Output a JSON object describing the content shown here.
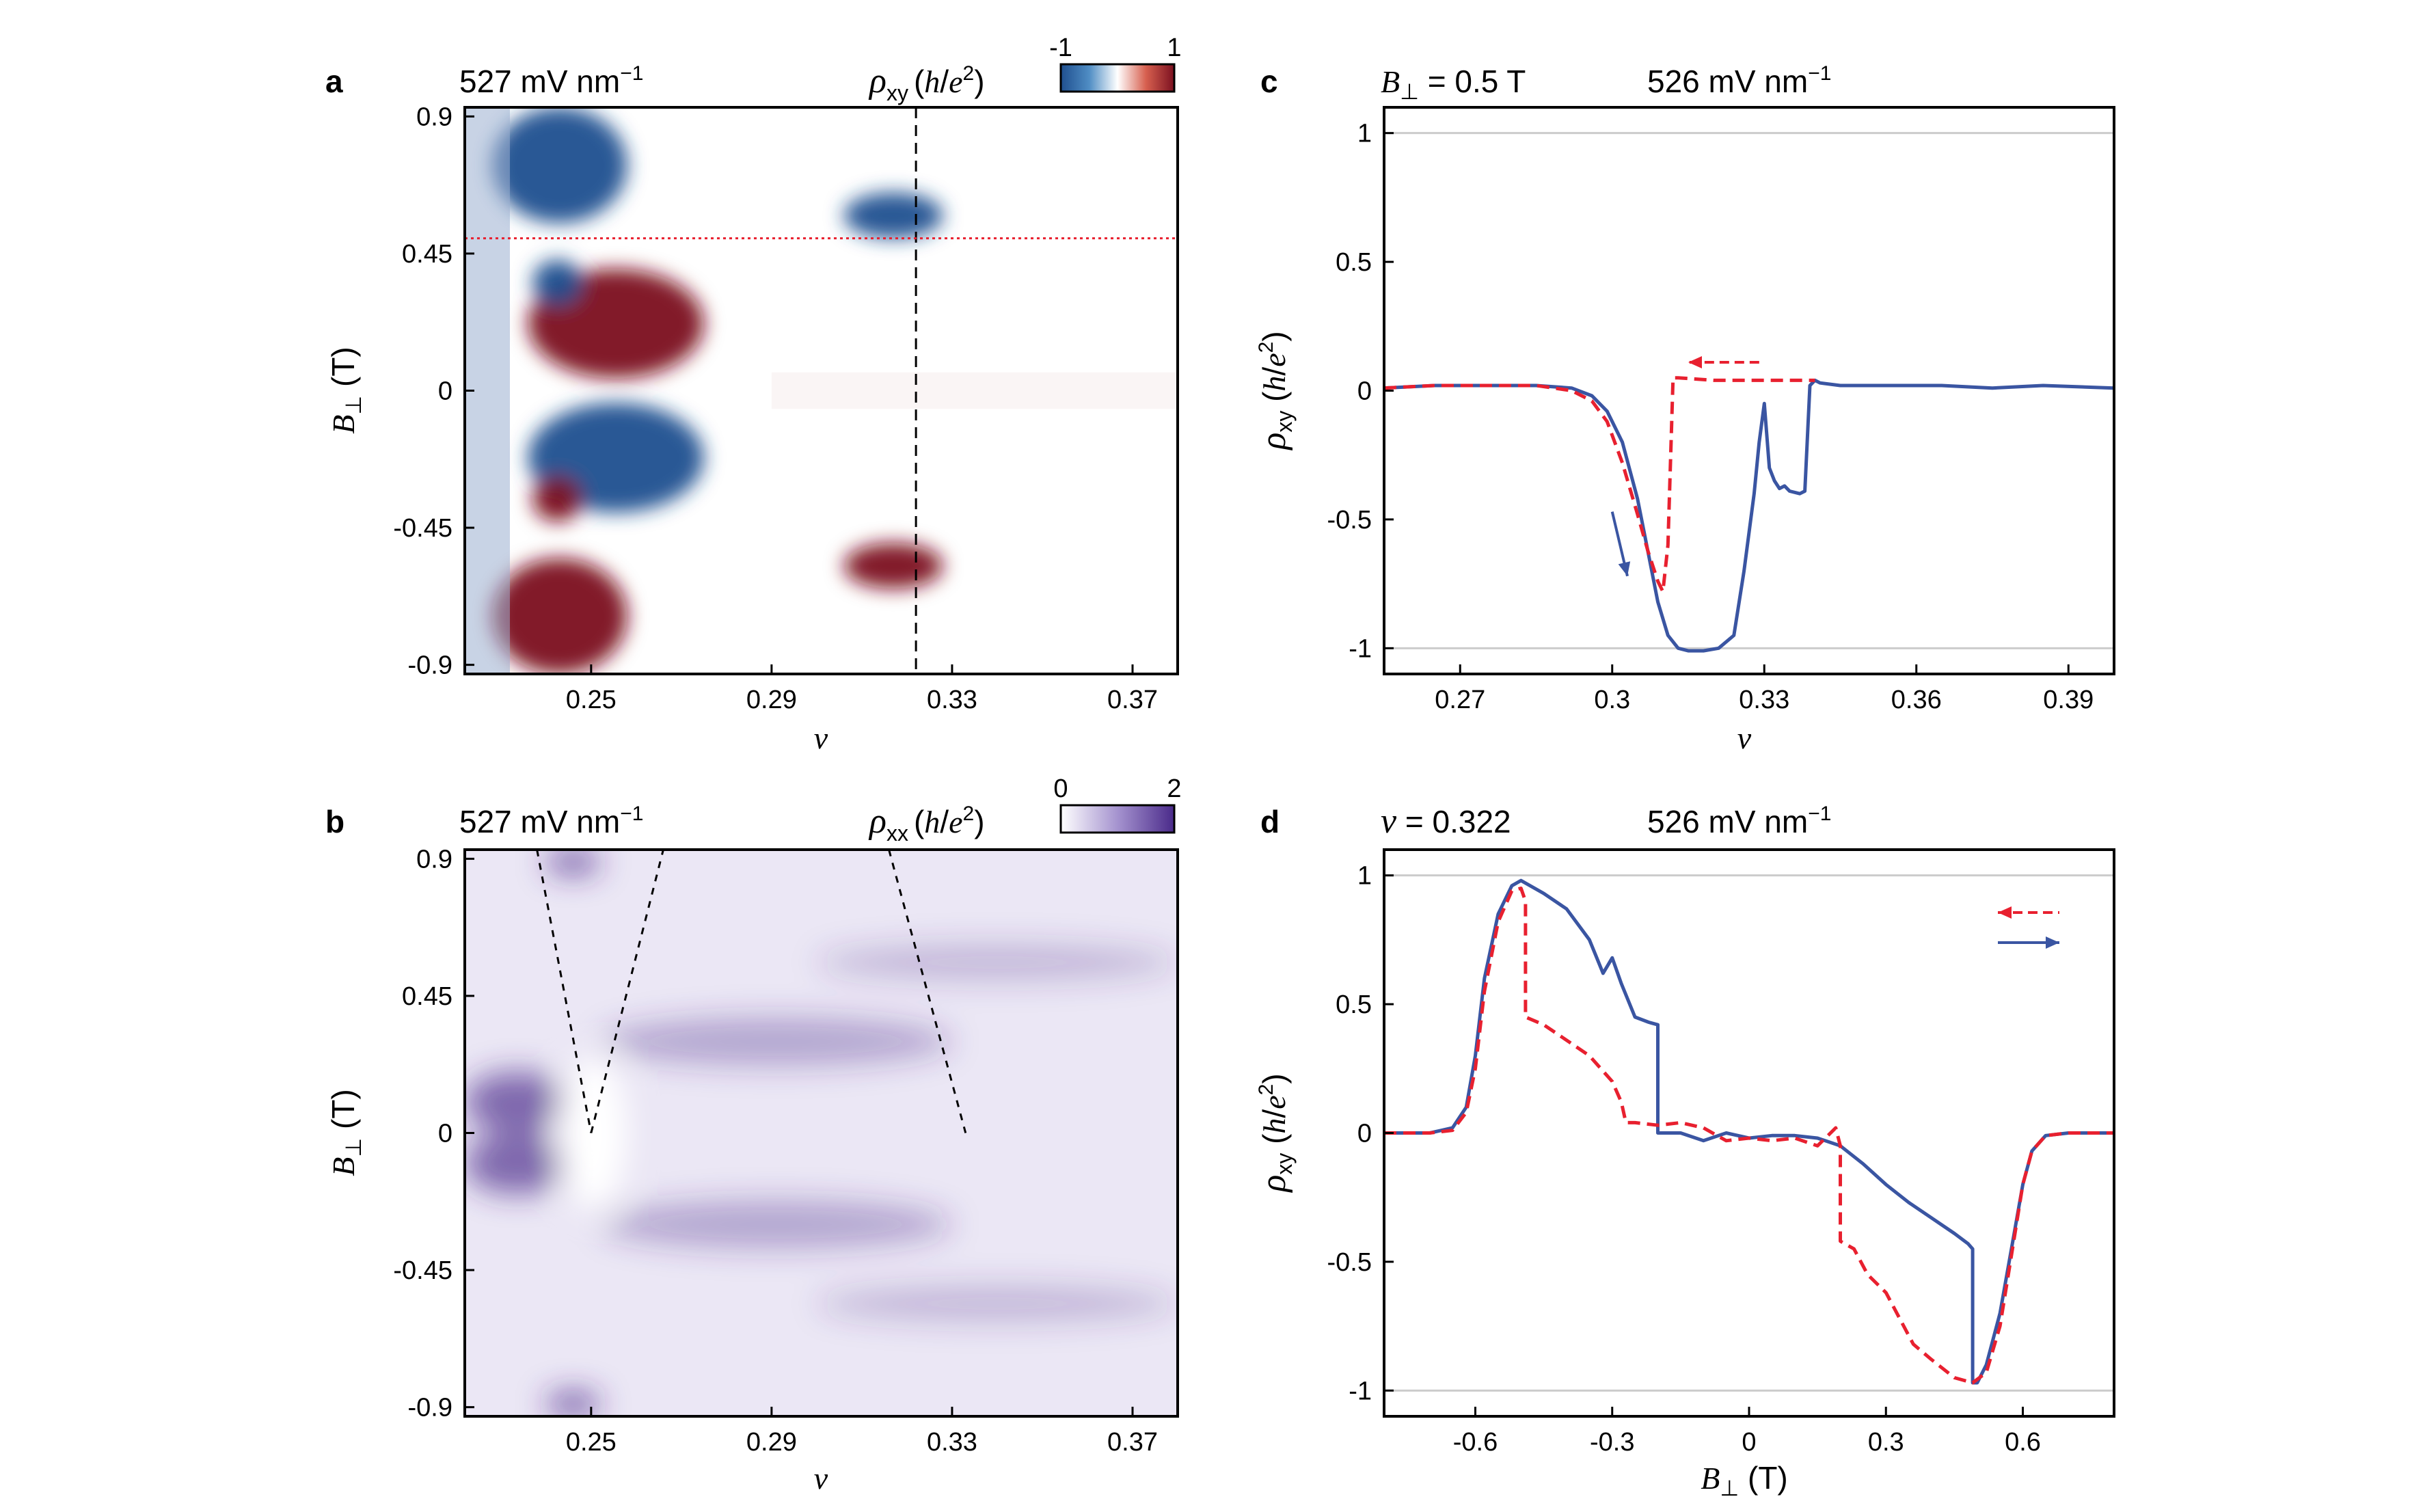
{
  "colors": {
    "red": "#e8202f",
    "blue": "#3a55a2",
    "neg": "#1f4f8f",
    "pos": "#7b1020",
    "purple": "#4a2a8a"
  },
  "panels": {
    "a": {
      "letter": "a",
      "field": "527 mV nm",
      "field_exp": "−1",
      "var_sym": "ρ",
      "var_sub": "xy",
      "var_unit_open": "(",
      "var_unit_h": "h",
      "var_unit_slash": "/",
      "var_unit_e": "e",
      "var_unit_exp": "2",
      "var_unit_close": ")",
      "cbar_min": "-1",
      "cbar_max": "1"
    },
    "b": {
      "letter": "b",
      "field": "527 mV nm",
      "field_exp": "−1",
      "var_sym": "ρ",
      "var_sub": "xx",
      "var_unit_open": "(",
      "var_unit_h": "h",
      "var_unit_slash": "/",
      "var_unit_e": "e",
      "var_unit_exp": "2",
      "var_unit_close": ")",
      "cbar_min": "0",
      "cbar_max": "2"
    },
    "c": {
      "letter": "c",
      "cond_sym": "B",
      "cond_sub": "⊥",
      "cond_val": " = 0.5 T",
      "field": "526 mV nm",
      "field_exp": "−1"
    },
    "d": {
      "letter": "d",
      "cond_sym": "ν",
      "cond_val": " = 0.322",
      "field": "526 mV nm",
      "field_exp": "−1"
    }
  },
  "chart_data": [
    {
      "id": "a",
      "type": "heatmap",
      "quantity": "ρxy",
      "xlabel": "ν",
      "ylabel_sym": "B",
      "ylabel_sub": "⊥",
      "ylabel_unit": " (T)",
      "xlim": [
        0.222,
        0.38
      ],
      "ylim": [
        -0.93,
        0.93
      ],
      "xticks": [
        "0.25",
        "0.29",
        "0.33",
        "0.37"
      ],
      "xtick_values": [
        0.25,
        0.29,
        0.33,
        0.37
      ],
      "yticks": [
        "0.9",
        "0.45",
        "0",
        "-0.45",
        "-0.9"
      ],
      "ytick_values": [
        0.9,
        0.45,
        0,
        -0.45,
        -0.9
      ],
      "colorbar": {
        "min": -1,
        "max": 1,
        "map": "blue-white-red"
      },
      "markers": {
        "vline_nu": 0.322,
        "hline_B": 0.5
      },
      "regions": [
        {
          "sign": -1,
          "nu": [
            0.228,
            0.258
          ],
          "B": [
            0.55,
            0.93
          ]
        },
        {
          "sign": 1,
          "nu": [
            0.236,
            0.275
          ],
          "B": [
            0.04,
            0.4
          ]
        },
        {
          "sign": -1,
          "nu": [
            0.237,
            0.248
          ],
          "B": [
            0.28,
            0.43
          ]
        },
        {
          "sign": -1,
          "nu": [
            0.236,
            0.275
          ],
          "B": [
            -0.4,
            -0.04
          ]
        },
        {
          "sign": 1,
          "nu": [
            0.237,
            0.248
          ],
          "B": [
            -0.43,
            -0.28
          ]
        },
        {
          "sign": 1,
          "nu": [
            0.228,
            0.258
          ],
          "B": [
            -0.93,
            -0.55
          ]
        },
        {
          "sign": -1,
          "nu": [
            0.306,
            0.328
          ],
          "B": [
            0.5,
            0.65
          ]
        },
        {
          "sign": 1,
          "nu": [
            0.306,
            0.328
          ],
          "B": [
            -0.65,
            -0.5
          ]
        }
      ]
    },
    {
      "id": "b",
      "type": "heatmap",
      "quantity": "ρxx",
      "xlabel": "ν",
      "ylabel_sym": "B",
      "ylabel_sub": "⊥",
      "ylabel_unit": " (T)",
      "xlim": [
        0.222,
        0.38
      ],
      "ylim": [
        -0.93,
        0.93
      ],
      "xticks": [
        "0.25",
        "0.29",
        "0.33",
        "0.37"
      ],
      "xtick_values": [
        0.25,
        0.29,
        0.33,
        0.37
      ],
      "yticks": [
        "0.9",
        "0.45",
        "0",
        "-0.45",
        "-0.9"
      ],
      "ytick_values": [
        0.9,
        0.45,
        0,
        -0.45,
        -0.9
      ],
      "colorbar": {
        "min": 0,
        "max": 2,
        "map": "white-purple"
      },
      "guide_lines": [
        {
          "nu": [
            0.238,
            0.25
          ],
          "B": [
            0.93,
            0.0
          ]
        },
        {
          "nu": [
            0.25,
            0.266
          ],
          "B": [
            0.0,
            0.93
          ]
        },
        {
          "nu": [
            0.316,
            0.333
          ],
          "B": [
            0.93,
            0.0
          ]
        }
      ],
      "regions": [
        {
          "nu": [
            0.222,
            0.245
          ],
          "B": [
            0.0,
            0.2
          ],
          "level": 1.6
        },
        {
          "nu": [
            0.222,
            0.245
          ],
          "B": [
            -0.2,
            0.0
          ],
          "level": 1.6
        },
        {
          "nu": [
            0.24,
            0.252
          ],
          "B": [
            0.85,
            0.93
          ],
          "level": 1.8
        },
        {
          "nu": [
            0.24,
            0.252
          ],
          "B": [
            -0.93,
            -0.85
          ],
          "level": 1.8
        },
        {
          "nu": [
            0.252,
            0.33
          ],
          "B": [
            0.22,
            0.38
          ],
          "level": 0.8
        },
        {
          "nu": [
            0.252,
            0.33
          ],
          "B": [
            -0.38,
            -0.22
          ],
          "level": 0.8
        },
        {
          "nu": [
            0.3,
            0.38
          ],
          "B": [
            0.5,
            0.62
          ],
          "level": 0.6
        },
        {
          "nu": [
            0.3,
            0.38
          ],
          "B": [
            -0.62,
            -0.5
          ],
          "level": 0.6
        }
      ]
    },
    {
      "id": "c",
      "type": "line",
      "xlabel": "ν",
      "ylabel_sym": "ρ",
      "ylabel_sub": "xy",
      "ylabel_unit_open": " (",
      "ylabel_unit_h": "h",
      "ylabel_unit_slash": "/",
      "ylabel_unit_e": "e",
      "ylabel_unit_exp": "2",
      "ylabel_unit_close": ")",
      "xlim": [
        0.255,
        0.399
      ],
      "ylim": [
        -1.1,
        1.1
      ],
      "xticks": [
        "0.27",
        "0.3",
        "0.33",
        "0.36",
        "0.39"
      ],
      "xtick_values": [
        0.27,
        0.3,
        0.33,
        0.36,
        0.39
      ],
      "yticks": [
        "1",
        "0.5",
        "0",
        "-0.5",
        "-1"
      ],
      "ytick_values": [
        1,
        0.5,
        0,
        -0.5,
        -1
      ],
      "hlines": [
        1,
        -1
      ],
      "series": [
        {
          "color": "#3a55a2",
          "dash": false,
          "x": [
            0.255,
            0.265,
            0.275,
            0.285,
            0.292,
            0.296,
            0.299,
            0.302,
            0.305,
            0.307,
            0.309,
            0.311,
            0.313,
            0.315,
            0.318,
            0.321,
            0.324,
            0.326,
            0.328,
            0.329,
            0.33,
            0.331,
            0.332,
            0.333,
            0.334,
            0.335,
            0.337,
            0.338,
            0.339,
            0.34,
            0.341,
            0.345,
            0.355,
            0.365,
            0.375,
            0.385,
            0.399
          ],
          "y": [
            0.01,
            0.02,
            0.02,
            0.02,
            0.01,
            -0.02,
            -0.08,
            -0.2,
            -0.42,
            -0.62,
            -0.82,
            -0.95,
            -1.0,
            -1.01,
            -1.01,
            -1.0,
            -0.95,
            -0.7,
            -0.4,
            -0.2,
            -0.05,
            -0.3,
            -0.35,
            -0.38,
            -0.37,
            -0.39,
            -0.4,
            -0.39,
            0.02,
            0.04,
            0.03,
            0.02,
            0.02,
            0.02,
            0.01,
            0.02,
            0.01
          ]
        },
        {
          "color": "#e8202f",
          "dash": true,
          "x": [
            0.255,
            0.265,
            0.275,
            0.285,
            0.292,
            0.296,
            0.299,
            0.302,
            0.305,
            0.307,
            0.309,
            0.31,
            0.311,
            0.312,
            0.313,
            0.32,
            0.33,
            0.34
          ],
          "y": [
            0.01,
            0.02,
            0.02,
            0.02,
            0.0,
            -0.04,
            -0.12,
            -0.28,
            -0.48,
            -0.62,
            -0.74,
            -0.78,
            -0.6,
            0.05,
            0.05,
            0.04,
            0.04,
            0.04
          ]
        }
      ],
      "arrows": [
        {
          "color": "#e8202f",
          "dash": true,
          "from": [
            0.329,
            0.11
          ],
          "to": [
            0.315,
            0.11
          ]
        },
        {
          "color": "#3a55a2",
          "dash": false,
          "from": [
            0.3,
            -0.47
          ],
          "to": [
            0.303,
            -0.72
          ]
        }
      ]
    },
    {
      "id": "d",
      "type": "line",
      "xlabel_sym": "B",
      "xlabel_sub": "⊥",
      "xlabel_unit": " (T)",
      "ylabel_sym": "ρ",
      "ylabel_sub": "xy",
      "ylabel_unit_open": " (",
      "ylabel_unit_h": "h",
      "ylabel_unit_slash": "/",
      "ylabel_unit_e": "e",
      "ylabel_unit_exp": "2",
      "ylabel_unit_close": ")",
      "xlim": [
        -0.8,
        0.8
      ],
      "ylim": [
        -1.1,
        1.1
      ],
      "xticks": [
        "-0.6",
        "-0.3",
        "0",
        "0.3",
        "0.6"
      ],
      "xtick_values": [
        -0.6,
        -0.3,
        0,
        0.3,
        0.6
      ],
      "yticks": [
        "1",
        "0.5",
        "0",
        "-0.5",
        "-1"
      ],
      "ytick_values": [
        1,
        0.5,
        0,
        -0.5,
        -1
      ],
      "hlines": [
        1,
        -1
      ],
      "series": [
        {
          "color": "#3a55a2",
          "dash": false,
          "x": [
            -0.8,
            -0.7,
            -0.65,
            -0.62,
            -0.6,
            -0.58,
            -0.55,
            -0.52,
            -0.5,
            -0.45,
            -0.4,
            -0.35,
            -0.32,
            -0.3,
            -0.28,
            -0.25,
            -0.22,
            -0.2,
            -0.2,
            -0.15,
            -0.1,
            -0.05,
            0.0,
            0.05,
            0.1,
            0.15,
            0.2,
            0.25,
            0.3,
            0.35,
            0.4,
            0.45,
            0.48,
            0.49,
            0.49,
            0.5,
            0.52,
            0.55,
            0.58,
            0.6,
            0.62,
            0.65,
            0.7,
            0.8
          ],
          "y": [
            0.0,
            0.0,
            0.02,
            0.1,
            0.3,
            0.6,
            0.85,
            0.96,
            0.98,
            0.93,
            0.87,
            0.75,
            0.62,
            0.68,
            0.58,
            0.45,
            0.43,
            0.42,
            0.0,
            0.0,
            -0.03,
            0.0,
            -0.02,
            -0.01,
            -0.01,
            -0.02,
            -0.05,
            -0.12,
            -0.2,
            -0.27,
            -0.33,
            -0.39,
            -0.43,
            -0.45,
            -0.97,
            -0.97,
            -0.9,
            -0.7,
            -0.4,
            -0.2,
            -0.07,
            -0.01,
            0.0,
            0.0
          ]
        },
        {
          "color": "#e8202f",
          "dash": true,
          "x": [
            -0.8,
            -0.7,
            -0.65,
            -0.62,
            -0.6,
            -0.58,
            -0.55,
            -0.52,
            -0.5,
            -0.49,
            -0.49,
            -0.45,
            -0.4,
            -0.35,
            -0.3,
            -0.28,
            -0.27,
            -0.25,
            -0.2,
            -0.15,
            -0.1,
            -0.05,
            0.0,
            0.05,
            0.1,
            0.15,
            0.19,
            0.2,
            0.2,
            0.23,
            0.26,
            0.3,
            0.33,
            0.36,
            0.4,
            0.45,
            0.49,
            0.52,
            0.55,
            0.58,
            0.6,
            0.62,
            0.65,
            0.7,
            0.8
          ],
          "y": [
            0.0,
            0.0,
            0.01,
            0.08,
            0.25,
            0.55,
            0.82,
            0.94,
            0.95,
            0.9,
            0.45,
            0.42,
            0.36,
            0.3,
            0.2,
            0.12,
            0.04,
            0.04,
            0.03,
            0.04,
            0.02,
            -0.03,
            -0.02,
            -0.03,
            -0.02,
            -0.05,
            0.02,
            -0.05,
            -0.42,
            -0.45,
            -0.55,
            -0.62,
            -0.72,
            -0.82,
            -0.88,
            -0.95,
            -0.97,
            -0.93,
            -0.75,
            -0.42,
            -0.2,
            -0.07,
            -0.01,
            0.0,
            0.0
          ]
        }
      ],
      "legend": [
        {
          "color": "#e8202f",
          "dash": true,
          "direction": "left"
        },
        {
          "color": "#3a55a2",
          "dash": false,
          "direction": "right"
        }
      ],
      "legend_position": "top-right"
    }
  ]
}
